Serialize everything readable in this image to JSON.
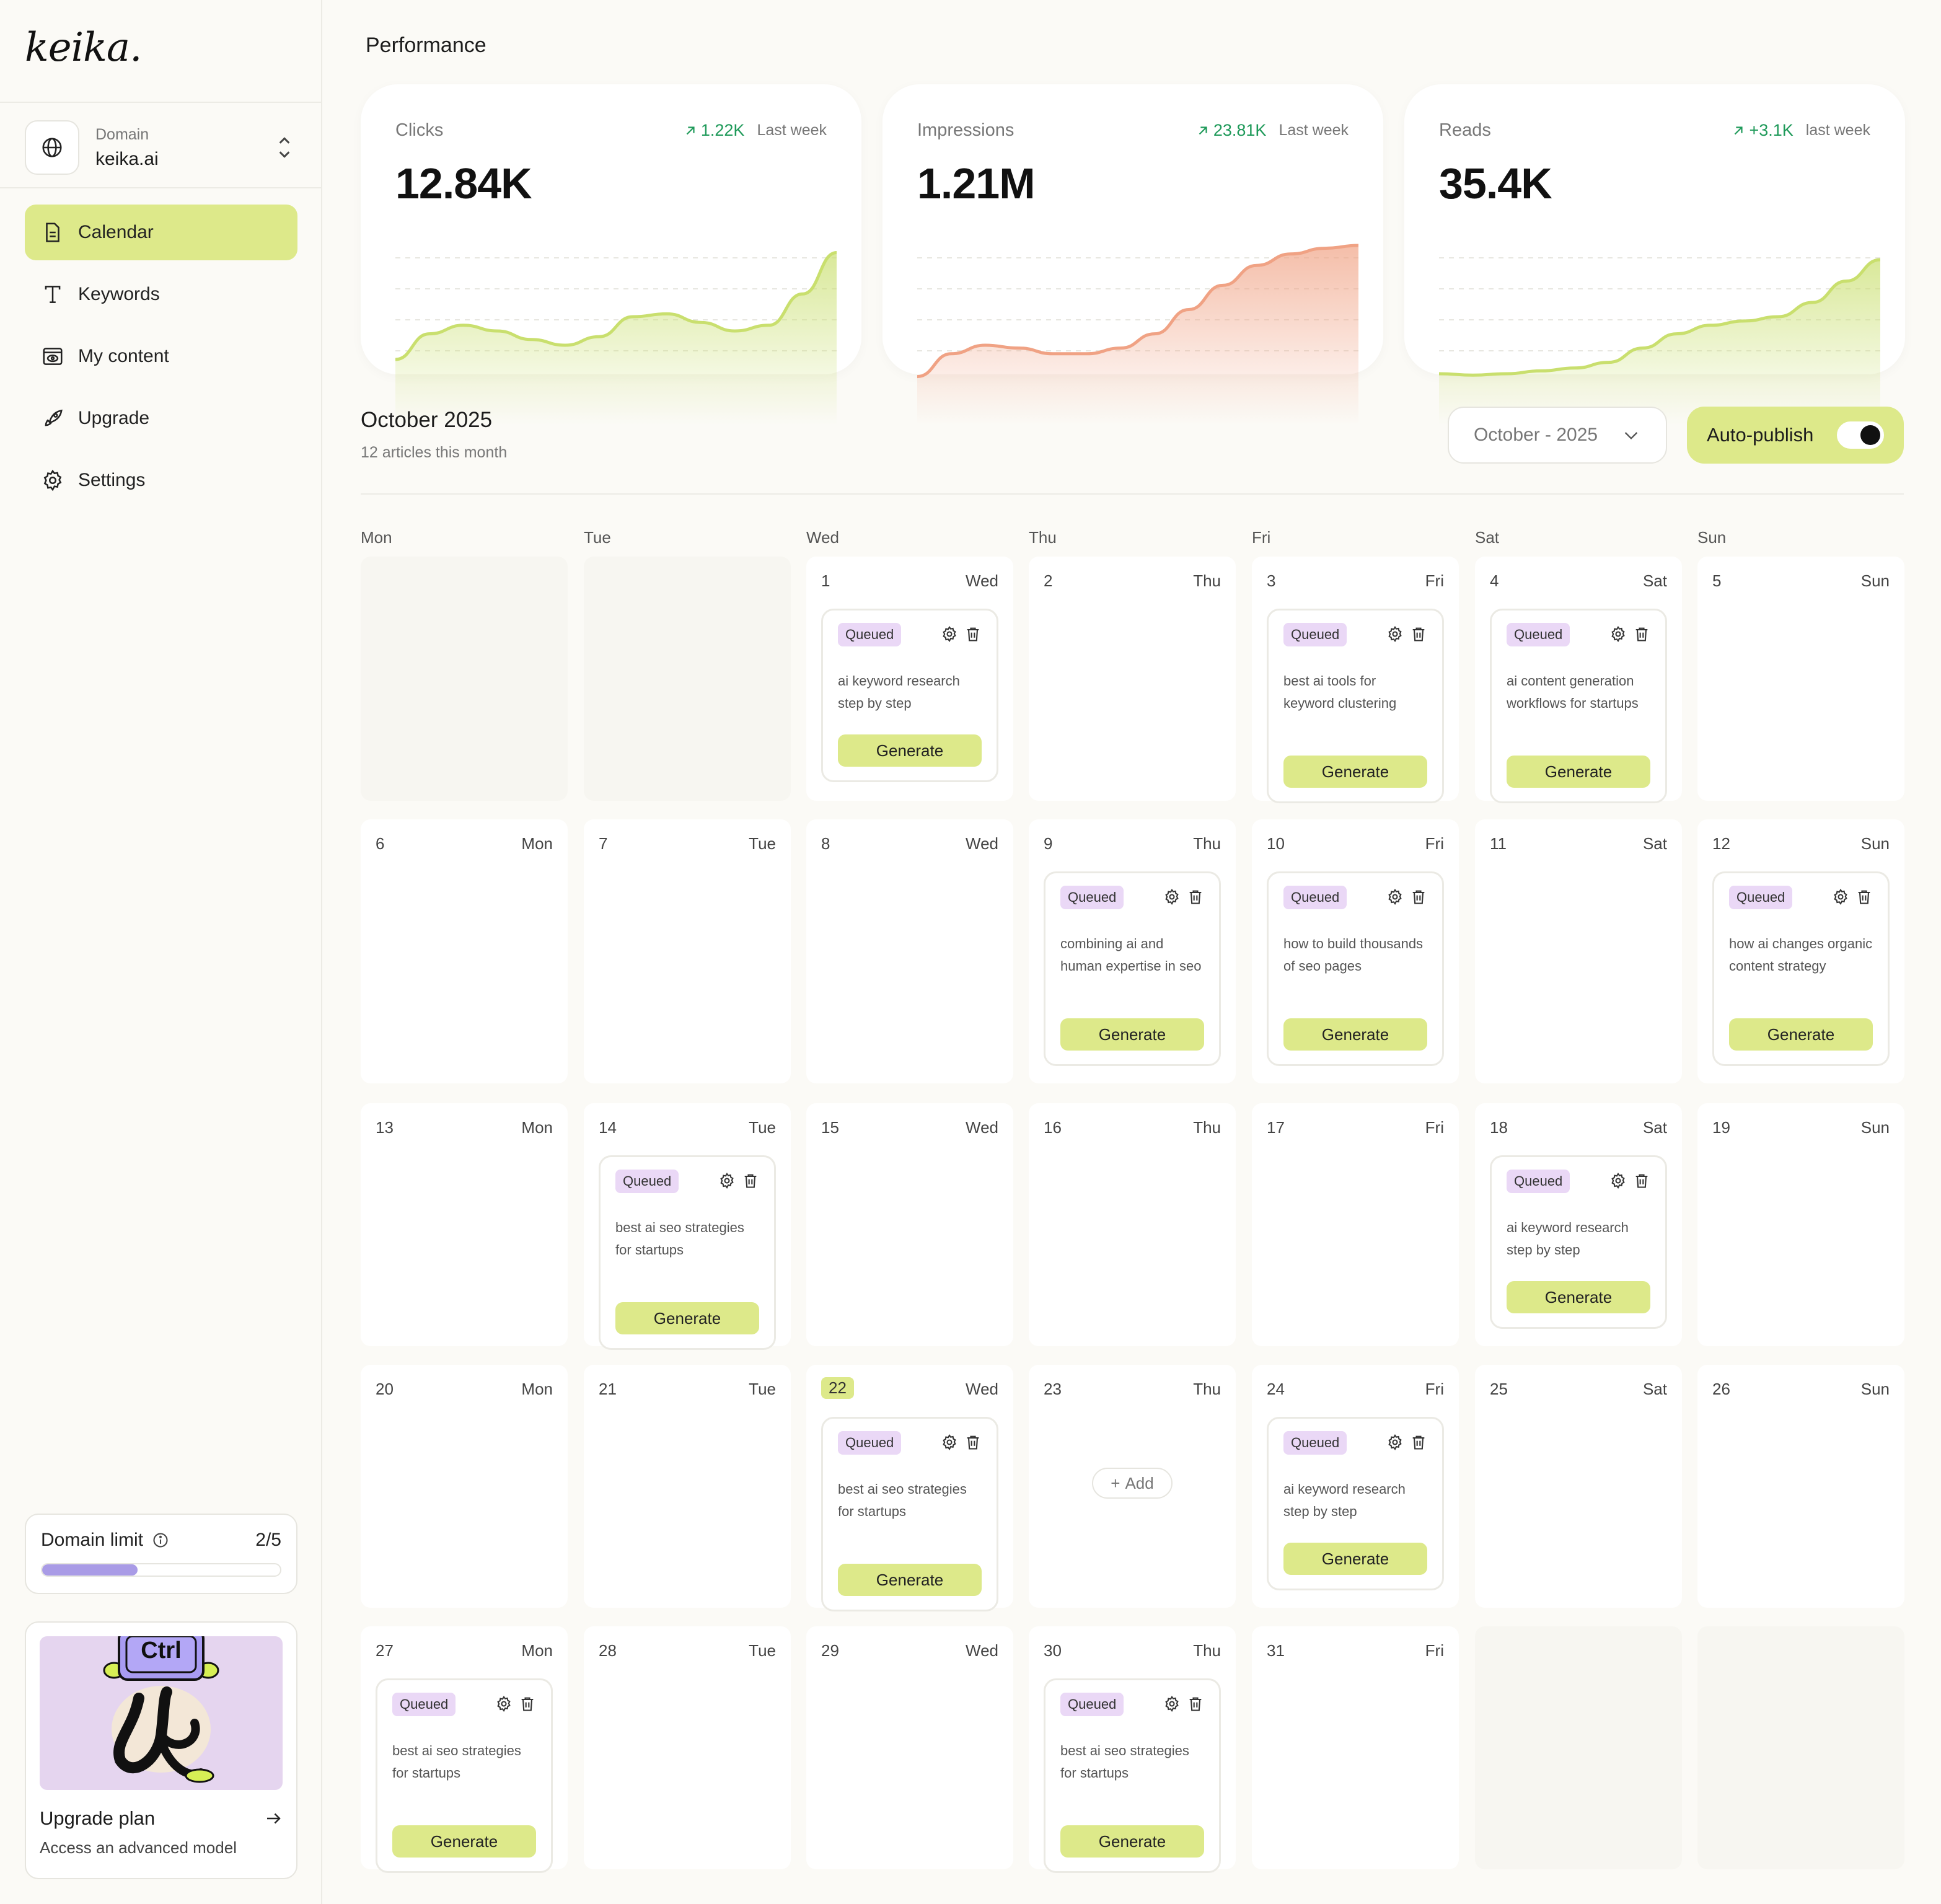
{
  "brand": {
    "name": "keika."
  },
  "domain": {
    "label": "Domain",
    "value": "keika.ai"
  },
  "nav": [
    {
      "label": "Calendar",
      "icon": "document-icon",
      "active": true
    },
    {
      "label": "Keywords",
      "icon": "text-icon",
      "active": false
    },
    {
      "label": "My content",
      "icon": "browser-eye-icon",
      "active": false
    },
    {
      "label": "Upgrade",
      "icon": "rocket-icon",
      "active": false
    },
    {
      "label": "Settings",
      "icon": "gear-icon",
      "active": false
    }
  ],
  "domain_limit": {
    "label": "Domain limit",
    "count": "2/5",
    "used": 2,
    "total": 5,
    "fill_color": "#a99be6"
  },
  "upgrade": {
    "badge_text": "Ctrl",
    "title": "Upgrade plan",
    "subtitle": "Access an advanced model"
  },
  "performance": {
    "title": "Performance",
    "cards": [
      {
        "label": "Clicks",
        "delta": "1.22K",
        "period": "Last week",
        "value": "12.84K",
        "color": "#c9df6e",
        "trend": [
          0.2,
          0.38,
          0.44,
          0.4,
          0.34,
          0.3,
          0.36,
          0.5,
          0.52,
          0.46,
          0.4,
          0.44,
          0.66,
          0.95
        ]
      },
      {
        "label": "Impressions",
        "delta": "23.81K",
        "period": "Last week",
        "value": "1.21M",
        "color": "#f0a284",
        "trend": [
          0.08,
          0.24,
          0.3,
          0.28,
          0.24,
          0.24,
          0.28,
          0.38,
          0.55,
          0.72,
          0.86,
          0.94,
          0.98,
          1.0
        ]
      },
      {
        "label": "Reads",
        "delta": "+3.1K",
        "period": "last week",
        "value": "35.4K",
        "color": "#c9df6e",
        "trend": [
          0.1,
          0.09,
          0.1,
          0.12,
          0.14,
          0.18,
          0.28,
          0.38,
          0.44,
          0.47,
          0.5,
          0.6,
          0.75,
          0.9
        ]
      }
    ]
  },
  "calendar": {
    "month_title": "October 2025",
    "subtitle": "12 articles this month",
    "month_select": "October - 2025",
    "autopublish_label": "Auto-publish",
    "autopublish_on": true,
    "weekdays": [
      "Mon",
      "Tue",
      "Wed",
      "Thu",
      "Fri",
      "Sat",
      "Sun"
    ],
    "badge_label": "Queued",
    "generate_label": "Generate",
    "add_label": "Add",
    "today": 22,
    "days": [
      {
        "day": 1,
        "name": "Wed",
        "task": "ai keyword research step by step"
      },
      {
        "day": 2,
        "name": "Thu"
      },
      {
        "day": 3,
        "name": "Fri",
        "task": "best ai tools for keyword clustering"
      },
      {
        "day": 4,
        "name": "Sat",
        "task": "ai content generation workflows for startups"
      },
      {
        "day": 5,
        "name": "Sun"
      },
      {
        "day": 6,
        "name": "Mon"
      },
      {
        "day": 7,
        "name": "Tue"
      },
      {
        "day": 8,
        "name": "Wed"
      },
      {
        "day": 9,
        "name": "Thu",
        "task": "combining ai and human expertise in seo"
      },
      {
        "day": 10,
        "name": "Fri",
        "task": "how to build thousands of seo pages"
      },
      {
        "day": 11,
        "name": "Sat"
      },
      {
        "day": 12,
        "name": "Sun",
        "task": "how ai changes organic content strategy"
      },
      {
        "day": 13,
        "name": "Mon"
      },
      {
        "day": 14,
        "name": "Tue",
        "task": "best ai seo strategies for startups"
      },
      {
        "day": 15,
        "name": "Wed"
      },
      {
        "day": 16,
        "name": "Thu"
      },
      {
        "day": 17,
        "name": "Fri"
      },
      {
        "day": 18,
        "name": "Sat",
        "task": "ai keyword research step by step"
      },
      {
        "day": 19,
        "name": "Sun"
      },
      {
        "day": 20,
        "name": "Mon"
      },
      {
        "day": 21,
        "name": "Tue"
      },
      {
        "day": 22,
        "name": "Wed",
        "task": "best ai seo strategies for startups"
      },
      {
        "day": 23,
        "name": "Thu",
        "add": true
      },
      {
        "day": 24,
        "name": "Fri",
        "task": "ai keyword research step by step"
      },
      {
        "day": 25,
        "name": "Sat"
      },
      {
        "day": 26,
        "name": "Sun"
      },
      {
        "day": 27,
        "name": "Mon",
        "task": "best ai seo strategies for startups"
      },
      {
        "day": 28,
        "name": "Tue"
      },
      {
        "day": 29,
        "name": "Wed"
      },
      {
        "day": 30,
        "name": "Thu",
        "task": "best ai seo strategies for startups"
      },
      {
        "day": 31,
        "name": "Fri"
      }
    ]
  }
}
